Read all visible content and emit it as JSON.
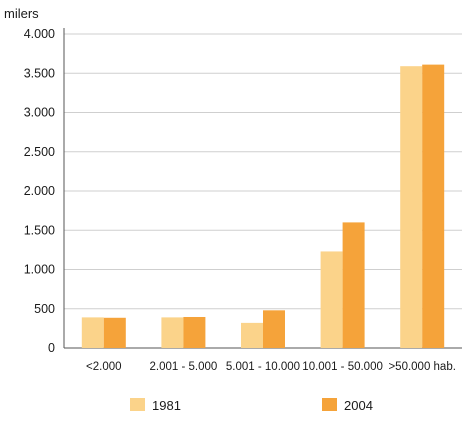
{
  "chart_data": {
    "type": "bar",
    "ylabel": "milers",
    "categories": [
      "<2.000",
      "2.001 - 5.000",
      "5.001 - 10.000",
      "10.001 - 50.000",
      ">50.000 hab."
    ],
    "series": [
      {
        "name": "1981",
        "color": "#fbd38a",
        "values": [
          390,
          390,
          320,
          1230,
          3590
        ]
      },
      {
        "name": "2004",
        "color": "#f5a33a",
        "values": [
          385,
          395,
          480,
          1600,
          3610
        ]
      }
    ],
    "ylim": [
      0,
      4000
    ],
    "yticks": [
      0,
      500,
      1000,
      1500,
      2000,
      2500,
      3000,
      3500,
      4000
    ],
    "ytick_labels": [
      "0",
      "500",
      "1.000",
      "1.500",
      "2.000",
      "2.500",
      "3.000",
      "3.500",
      "4.000"
    ],
    "grid": true,
    "legend": "bottom"
  },
  "colors": {
    "grid": "#cfcfcf",
    "axis": "#555555"
  }
}
